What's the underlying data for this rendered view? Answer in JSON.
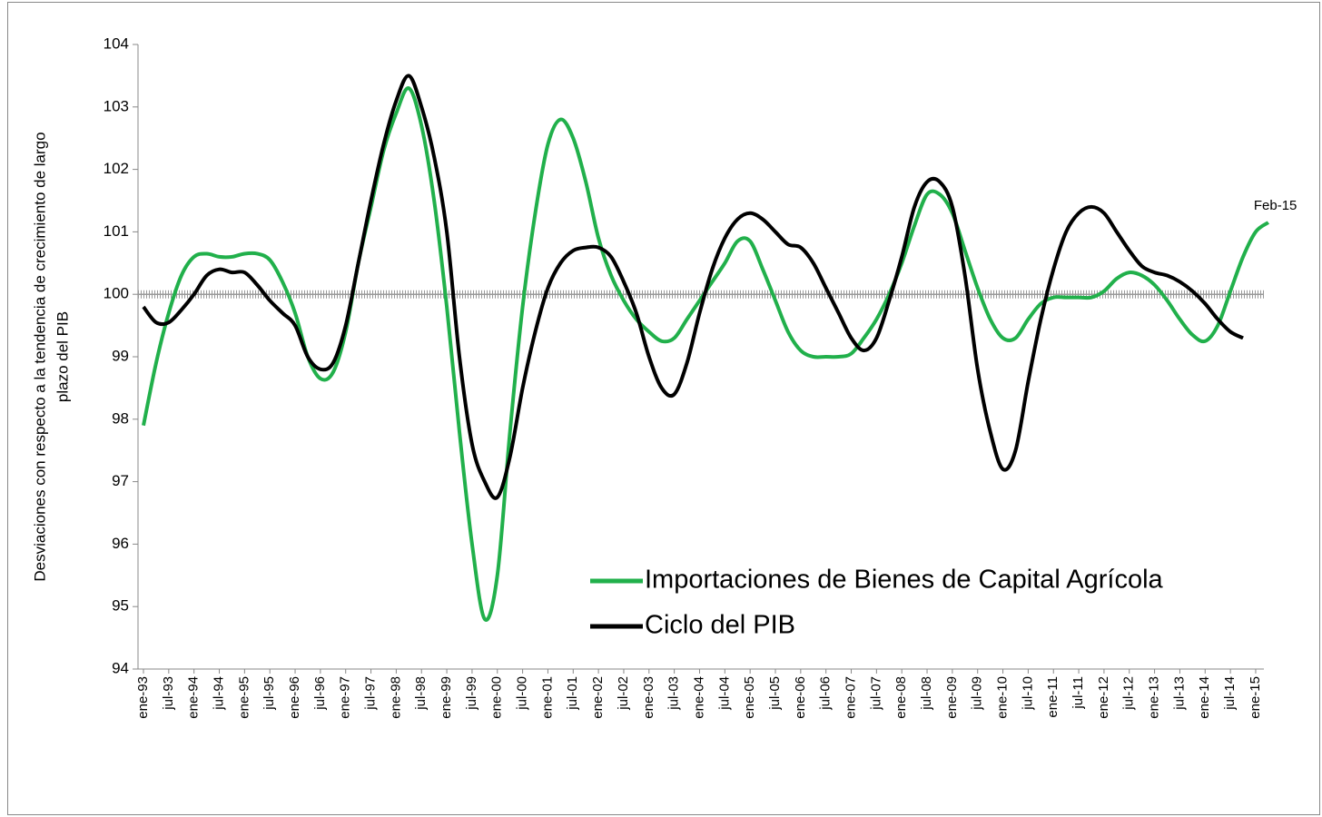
{
  "chart_data": {
    "type": "line",
    "y_label": [
      "Desviaciones con respecto a la tendencia de crecimiento de largo",
      "plazo del PIB"
    ],
    "categories": [
      "ene-93",
      null,
      "jul-93",
      null,
      "ene-94",
      null,
      "jul-94",
      null,
      "ene-95",
      null,
      "jul-95",
      null,
      "ene-96",
      null,
      "jul-96",
      null,
      "ene-97",
      null,
      "jul-97",
      null,
      "ene-98",
      null,
      "jul-98",
      null,
      "ene-99",
      null,
      "jul-99",
      null,
      "ene-00",
      null,
      "jul-00",
      null,
      "ene-01",
      null,
      "jul-01",
      null,
      "ene-02",
      null,
      "jul-02",
      null,
      "ene-03",
      null,
      "jul-03",
      null,
      "ene-04",
      null,
      "jul-04",
      null,
      "ene-05",
      null,
      "jul-05",
      null,
      "ene-06",
      null,
      "jul-06",
      null,
      "ene-07",
      null,
      "jul-07",
      null,
      "ene-08",
      null,
      "jul-08",
      null,
      "ene-09",
      null,
      "jul-09",
      null,
      "ene-10",
      null,
      "jul-10",
      null,
      "ene-11",
      null,
      "jul-11",
      null,
      "ene-12",
      null,
      "jul-12",
      null,
      "ene-13",
      null,
      "jul-13",
      null,
      "ene-14",
      null,
      "jul-14",
      null,
      "ene-15",
      null
    ],
    "series": [
      {
        "name": "Importaciones de Bienes de Capital Agrícola",
        "color": "#21b04b",
        "values": [
          97.9,
          98.9,
          99.7,
          100.3,
          100.6,
          100.65,
          100.6,
          100.6,
          100.65,
          100.65,
          100.55,
          100.2,
          99.7,
          99.0,
          98.65,
          98.75,
          99.4,
          100.5,
          101.4,
          102.3,
          102.9,
          103.3,
          102.7,
          101.5,
          99.8,
          97.8,
          96.0,
          94.8,
          95.5,
          97.8,
          99.8,
          101.3,
          102.4,
          102.8,
          102.5,
          101.8,
          100.9,
          100.3,
          99.9,
          99.6,
          99.4,
          99.25,
          99.3,
          99.6,
          99.9,
          100.2,
          100.5,
          100.85,
          100.85,
          100.4,
          99.9,
          99.4,
          99.1,
          99.0,
          99.0,
          99.0,
          99.05,
          99.3,
          99.6,
          100.0,
          100.5,
          101.1,
          101.6,
          101.6,
          101.3,
          100.7,
          100.1,
          99.6,
          99.3,
          99.3,
          99.6,
          99.85,
          99.95,
          99.95,
          99.95,
          99.95,
          100.05,
          100.25,
          100.35,
          100.3,
          100.15,
          99.9,
          99.6,
          99.35,
          99.25,
          99.5,
          100.05,
          100.6,
          101.0,
          101.15
        ]
      },
      {
        "name": "Ciclo del PIB",
        "color": "#000000",
        "values": [
          99.8,
          99.55,
          99.55,
          99.75,
          100.0,
          100.3,
          100.4,
          100.35,
          100.35,
          100.15,
          99.9,
          99.7,
          99.5,
          99.0,
          98.8,
          98.9,
          99.5,
          100.5,
          101.5,
          102.4,
          103.1,
          103.5,
          103.0,
          102.2,
          101.0,
          99.0,
          97.6,
          97.0,
          96.75,
          97.4,
          98.5,
          99.4,
          100.1,
          100.5,
          100.7,
          100.75,
          100.75,
          100.6,
          100.2,
          99.7,
          99.0,
          98.5,
          98.4,
          98.9,
          99.7,
          100.4,
          100.9,
          101.2,
          101.3,
          101.2,
          101.0,
          100.8,
          100.75,
          100.5,
          100.1,
          99.7,
          99.3,
          99.1,
          99.3,
          99.9,
          100.6,
          101.4,
          101.8,
          101.8,
          101.4,
          100.3,
          98.8,
          97.8,
          97.2,
          97.5,
          98.6,
          99.6,
          100.4,
          101.0,
          101.3,
          101.4,
          101.3,
          101.0,
          100.7,
          100.45,
          100.35,
          100.3,
          100.2,
          100.05,
          99.85,
          99.6,
          99.4,
          99.3,
          null,
          null
        ]
      }
    ],
    "annotation": "Feb-15",
    "reference_line": 100,
    "ylim": [
      94,
      104
    ],
    "yticks": [
      94,
      95,
      96,
      97,
      98,
      99,
      100,
      101,
      102,
      103,
      104
    ]
  }
}
